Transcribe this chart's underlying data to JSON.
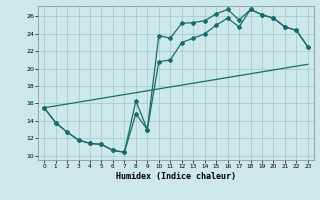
{
  "xlabel": "Humidex (Indice chaleur)",
  "xlim": [
    -0.5,
    23.5
  ],
  "ylim": [
    9.5,
    27.2
  ],
  "yticks": [
    10,
    12,
    14,
    16,
    18,
    20,
    22,
    24,
    26
  ],
  "xticks": [
    0,
    1,
    2,
    3,
    4,
    5,
    6,
    7,
    8,
    9,
    10,
    11,
    12,
    13,
    14,
    15,
    16,
    17,
    18,
    19,
    20,
    21,
    22,
    23
  ],
  "bg_color": "#cce8e8",
  "grid_color": "#aacccc",
  "line_color": "#1a6b6b",
  "line1_x": [
    0,
    1,
    2,
    3,
    4,
    5,
    6,
    7,
    8,
    9,
    10,
    11,
    12,
    13,
    14,
    15,
    16,
    17,
    18,
    19,
    20,
    21,
    22,
    23
  ],
  "line1_y": [
    15.5,
    13.8,
    12.7,
    11.8,
    11.4,
    11.3,
    10.6,
    10.4,
    16.3,
    13.0,
    23.8,
    23.5,
    25.2,
    25.3,
    25.5,
    26.3,
    26.8,
    25.6,
    26.8,
    26.2,
    25.8,
    24.8,
    24.4,
    22.5
  ],
  "line2_x": [
    0,
    1,
    2,
    3,
    4,
    5,
    6,
    7,
    8,
    9,
    10,
    11,
    12,
    13,
    14,
    15,
    16,
    17,
    18,
    19,
    20,
    21,
    22,
    23
  ],
  "line2_y": [
    15.5,
    13.8,
    12.7,
    11.8,
    11.4,
    11.3,
    10.6,
    10.4,
    14.8,
    13.0,
    20.8,
    21.0,
    23.0,
    23.5,
    24.0,
    25.0,
    25.8,
    24.8,
    26.8,
    26.2,
    25.8,
    24.8,
    24.4,
    22.5
  ],
  "line3_x": [
    0,
    23
  ],
  "line3_y": [
    15.5,
    20.5
  ]
}
